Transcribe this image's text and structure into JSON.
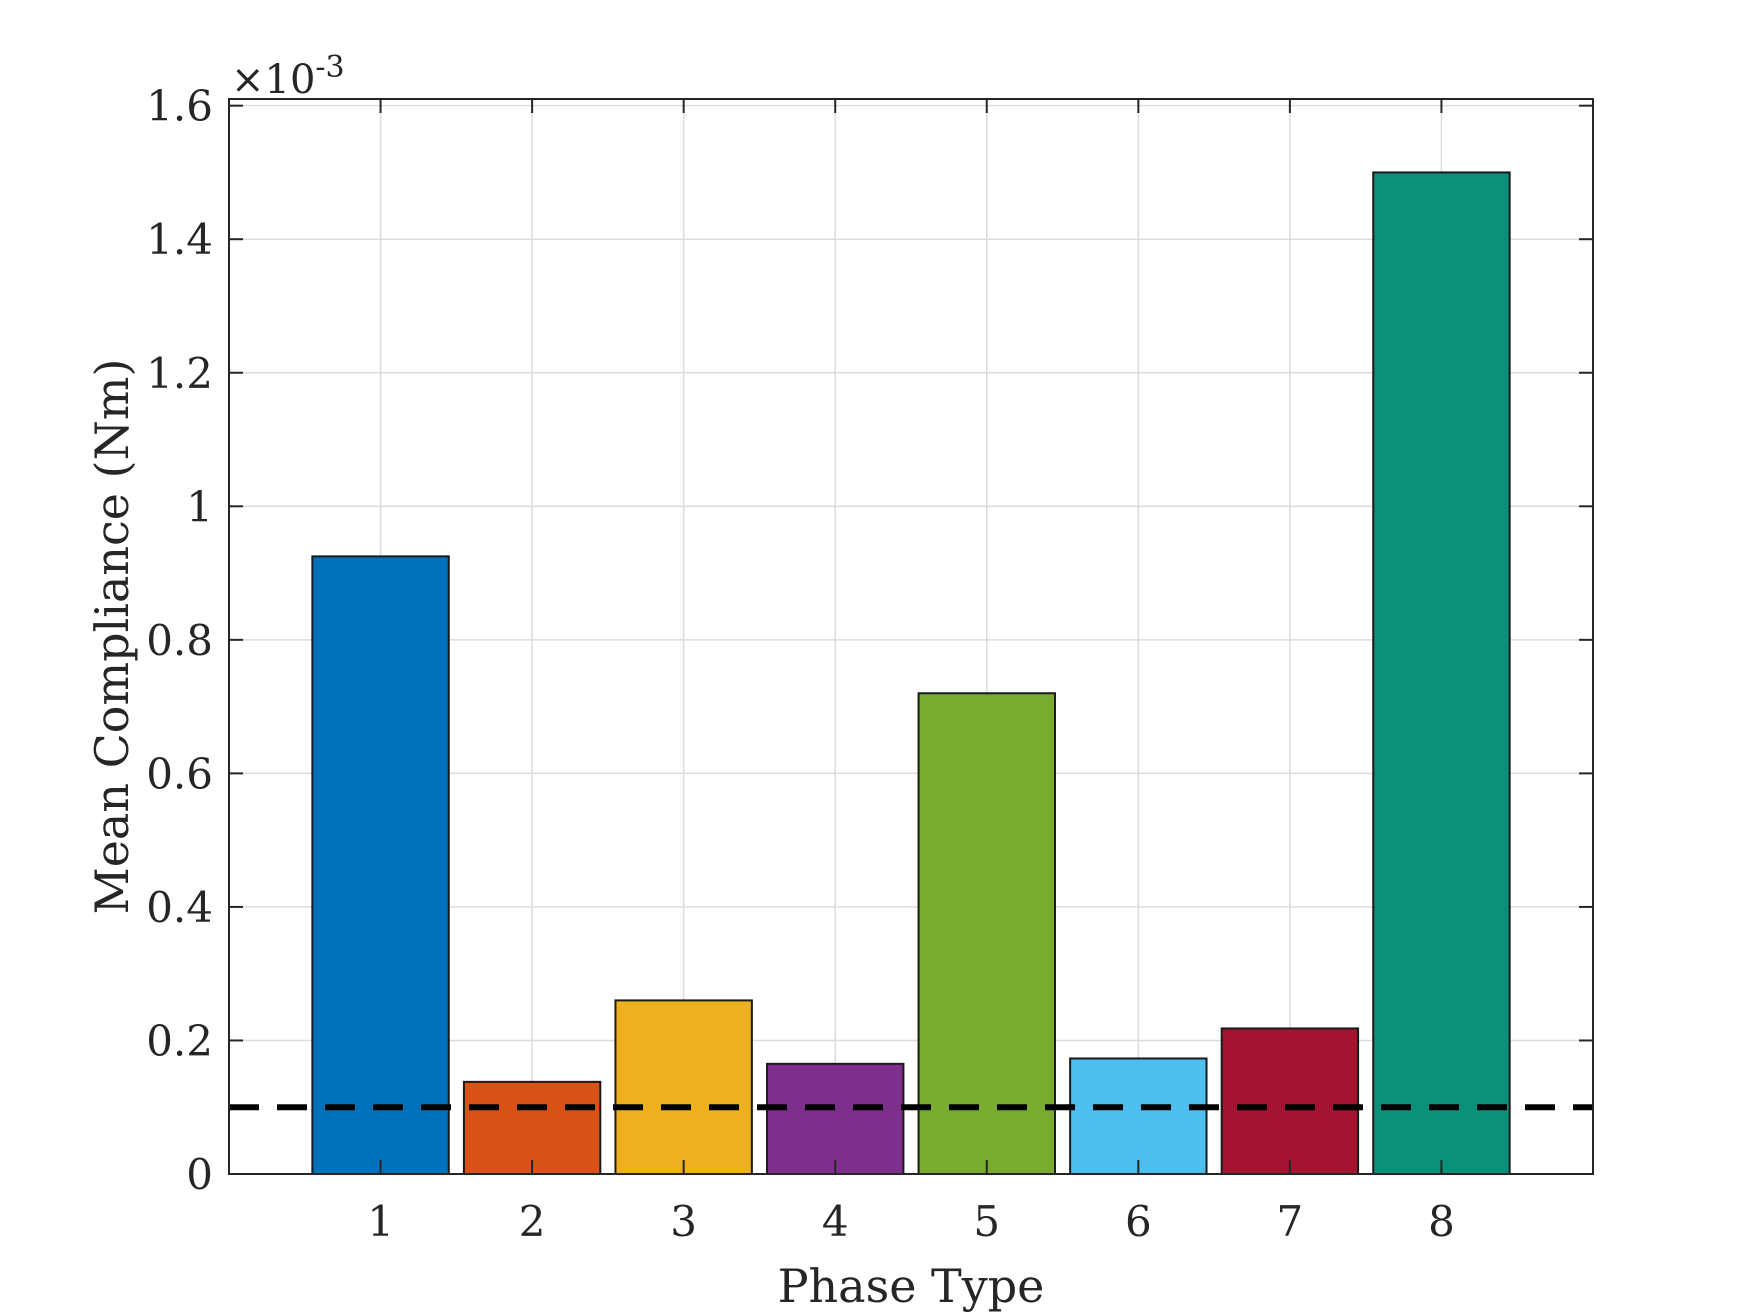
{
  "chart_data": {
    "type": "bar",
    "title": "",
    "xlabel": "Phase Type",
    "ylabel": "Mean Compliance (Nm)",
    "y_exponent_label": "×10",
    "y_exponent_power": "-3",
    "categories": [
      "1",
      "2",
      "3",
      "4",
      "5",
      "6",
      "7",
      "8"
    ],
    "xlim": [
      0,
      9
    ],
    "ylim": [
      0,
      1.61
    ],
    "y_ticks": [
      0,
      0.2,
      0.4,
      0.6,
      0.8,
      1,
      1.2,
      1.4,
      1.6
    ],
    "y_tick_labels": [
      "0",
      "0.2",
      "0.4",
      "0.6",
      "0.8",
      "1",
      "1.2",
      "1.4",
      "1.6"
    ],
    "grid": true,
    "series": [
      {
        "values": [
          0.925,
          0.138,
          0.26,
          0.165,
          0.72,
          0.173,
          0.218,
          1.5
        ],
        "colors": [
          "#0072BD",
          "#D95319",
          "#EDB120",
          "#7E2F8E",
          "#77AC30",
          "#4DBEEE",
          "#A2142F",
          "#099179"
        ]
      }
    ],
    "reference_line": {
      "y": 0.1,
      "style": "dashed",
      "color": "#000000"
    }
  }
}
